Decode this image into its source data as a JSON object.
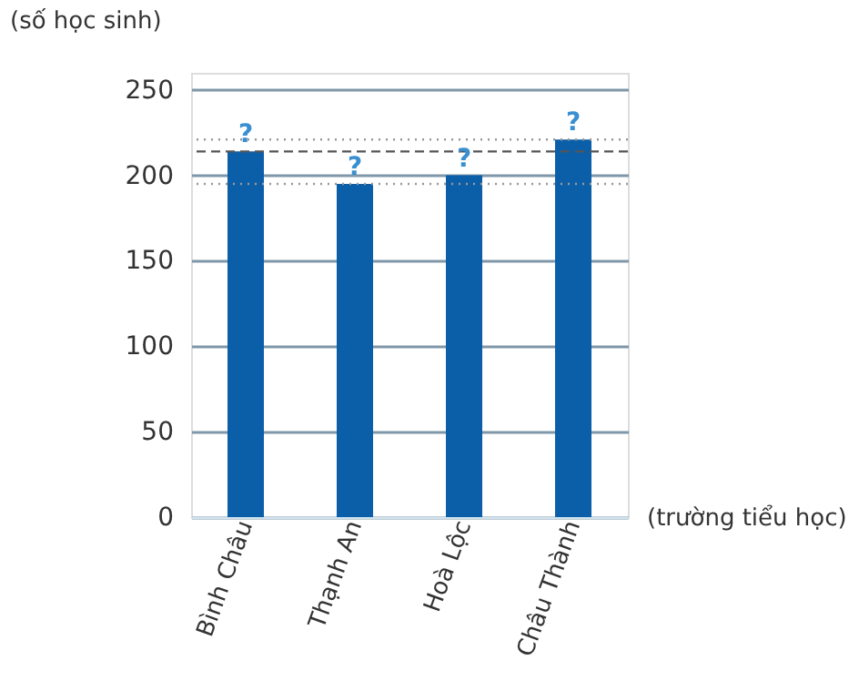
{
  "chart_data": {
    "type": "bar",
    "xlabel": "(trường tiểu học)",
    "ylabel": "(số học sinh)",
    "categories": [
      "Bình Châu",
      "Thạnh An",
      "Hoà Lộc",
      "Châu Thành"
    ],
    "values": [
      214,
      195,
      200,
      221
    ],
    "color": "#0b5ea8",
    "value_labels": [
      "?",
      "?",
      "?",
      "?"
    ],
    "ylim": [
      0,
      260
    ],
    "yticks": [
      0,
      50,
      100,
      150,
      200,
      250
    ],
    "grid": "y",
    "ref_lines": [
      {
        "axis": "y",
        "value": 214,
        "color": "#555555",
        "line_style": "dashed"
      },
      {
        "axis": "y",
        "value": 195,
        "color": "#999999",
        "line_style": "dotted"
      },
      {
        "axis": "y",
        "value": 221,
        "color": "#999999",
        "line_style": "dotted"
      }
    ]
  }
}
